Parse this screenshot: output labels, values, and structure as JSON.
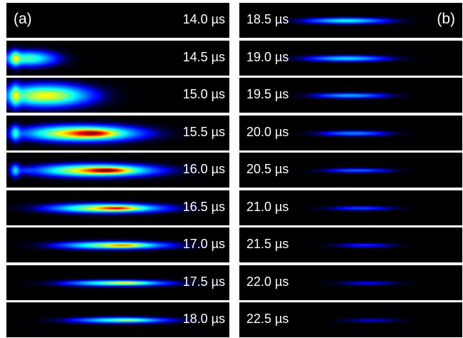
{
  "panels": {
    "a": {
      "label": "(a)",
      "frames": [
        {
          "time": "14.0 µs"
        },
        {
          "time": "14.5 µs"
        },
        {
          "time": "15.0 µs"
        },
        {
          "time": "15.5 µs"
        },
        {
          "time": "16.0 µs"
        },
        {
          "time": "16.5 µs"
        },
        {
          "time": "17.0 µs"
        },
        {
          "time": "17.5 µs"
        },
        {
          "time": "18.0 µs"
        }
      ]
    },
    "b": {
      "label": "(b)",
      "frames": [
        {
          "time": "18.5 µs"
        },
        {
          "time": "19.0 µs"
        },
        {
          "time": "19.5 µs"
        },
        {
          "time": "20.0 µs"
        },
        {
          "time": "20.5 µs"
        },
        {
          "time": "21.0 µs"
        },
        {
          "time": "21.5 µs"
        },
        {
          "time": "22.0 µs"
        },
        {
          "time": "22.5 µs"
        }
      ]
    }
  },
  "colors": {
    "frame_background": "#000000",
    "separator": "#ffffff",
    "text": "#ffffff"
  },
  "colormap": "jet"
}
